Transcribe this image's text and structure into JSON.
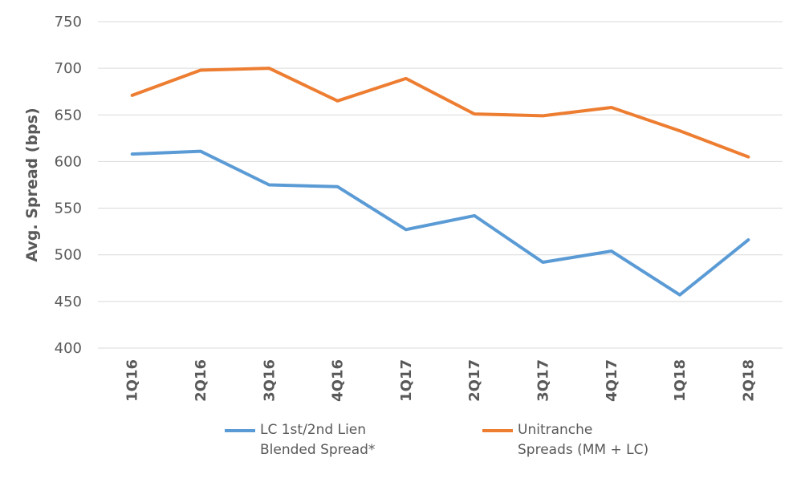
{
  "chart_data": {
    "type": "line",
    "categories": [
      "1Q16",
      "2Q16",
      "3Q16",
      "4Q16",
      "1Q17",
      "2Q17",
      "3Q17",
      "4Q17",
      "1Q18",
      "2Q18"
    ],
    "series": [
      {
        "name": "LC 1st/2nd Lien Blended Spread*",
        "legend_lines": [
          "LC 1st/2nd Lien",
          "Blended Spread*"
        ],
        "color": "#5B9BD5",
        "values": [
          608,
          611,
          575,
          573,
          527,
          542,
          492,
          504,
          457,
          516
        ]
      },
      {
        "name": "Unitranche Spreads (MM + LC)",
        "legend_lines": [
          "Unitranche",
          "Spreads (MM + LC)"
        ],
        "color": "#ED7D31",
        "values": [
          671,
          698,
          700,
          665,
          689,
          651,
          649,
          658,
          633,
          605
        ]
      }
    ],
    "ylabel": "Avg. Spread (bps)",
    "xlabel": "",
    "ylim": [
      400,
      750
    ],
    "yticks": [
      400,
      450,
      500,
      550,
      600,
      650,
      700,
      750
    ],
    "grid": true,
    "legend_position": "bottom"
  }
}
